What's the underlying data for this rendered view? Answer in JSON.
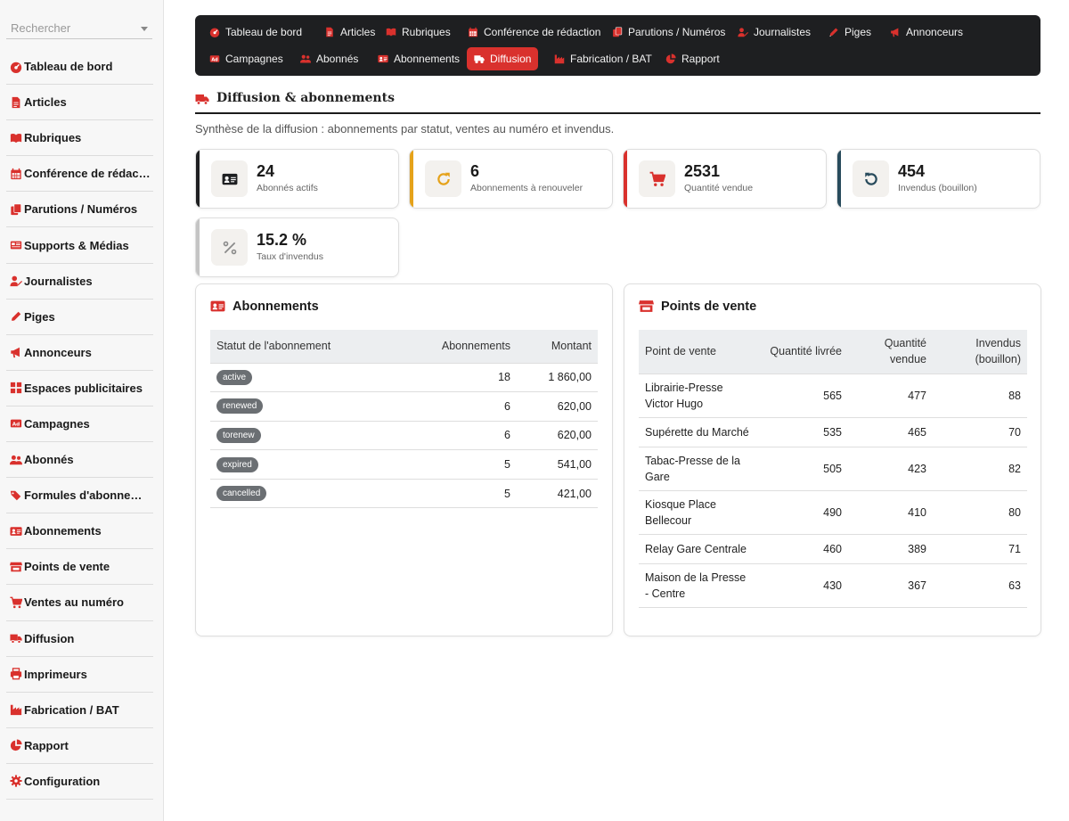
{
  "sidebar": {
    "search_placeholder": "Rechercher",
    "items": [
      {
        "label": "Tableau de bord",
        "icon": "gauge-icon"
      },
      {
        "label": "Articles",
        "icon": "file-icon"
      },
      {
        "label": "Rubriques",
        "icon": "book-open-icon"
      },
      {
        "label": "Conférence de rédac…",
        "icon": "calendar-icon"
      },
      {
        "label": "Parutions / Numéros",
        "icon": "copy-icon"
      },
      {
        "label": "Supports & Médias",
        "icon": "newspaper-icon"
      },
      {
        "label": "Journalistes",
        "icon": "user-pen-icon"
      },
      {
        "label": "Piges",
        "icon": "pen-icon"
      },
      {
        "label": "Annonceurs",
        "icon": "bullhorn-icon"
      },
      {
        "label": "Espaces publicitaires",
        "icon": "grid-icon"
      },
      {
        "label": "Campagnes",
        "icon": "ad-icon"
      },
      {
        "label": "Abonnés",
        "icon": "users-icon"
      },
      {
        "label": "Formules d'abonne…",
        "icon": "tags-icon"
      },
      {
        "label": "Abonnements",
        "icon": "id-card-icon"
      },
      {
        "label": "Points de vente",
        "icon": "store-icon"
      },
      {
        "label": "Ventes au numéro",
        "icon": "cart-icon"
      },
      {
        "label": "Diffusion",
        "icon": "truck-icon"
      },
      {
        "label": "Imprimeurs",
        "icon": "printer-icon"
      },
      {
        "label": "Fabrication / BAT",
        "icon": "industry-icon"
      },
      {
        "label": "Rapport",
        "icon": "pie-chart-icon"
      },
      {
        "label": "Configuration",
        "icon": "gear-icon"
      }
    ]
  },
  "topnav": {
    "row1": [
      {
        "label": "Tableau de bord",
        "icon": "gauge-icon"
      },
      {
        "label": "Articles",
        "icon": "file-icon"
      },
      {
        "label": "Rubriques",
        "icon": "book-open-icon"
      },
      {
        "label": "Conférence de rédaction",
        "icon": "calendar-icon"
      },
      {
        "label": "Parutions / Numéros",
        "icon": "copy-icon"
      },
      {
        "label": "Journalistes",
        "icon": "user-pen-icon"
      },
      {
        "label": "Piges",
        "icon": "pen-icon"
      },
      {
        "label": "Annonceurs",
        "icon": "bullhorn-icon"
      }
    ],
    "row2": [
      {
        "label": "Campagnes",
        "icon": "ad-icon"
      },
      {
        "label": "Abonnés",
        "icon": "users-icon"
      },
      {
        "label": "Abonnements",
        "icon": "id-card-icon"
      },
      {
        "label": "Diffusion",
        "icon": "truck-icon",
        "active": true
      },
      {
        "label": "Fabrication / BAT",
        "icon": "industry-icon"
      },
      {
        "label": "Rapport",
        "icon": "pie-chart-icon"
      }
    ]
  },
  "page": {
    "title": "Diffusion & abonnements",
    "subtitle": "Synthèse de la diffusion : abonnements par statut, ventes au numéro et invendus."
  },
  "stats": [
    {
      "value": "24",
      "label": "Abonnés actifs",
      "icon": "id-card-icon",
      "accent": "#1e1f21"
    },
    {
      "value": "6",
      "label": "Abonnements à renouveler",
      "icon": "redo-icon",
      "accent": "#e5a21a"
    },
    {
      "value": "2531",
      "label": "Quantité vendue",
      "icon": "cart-icon",
      "accent": "#d9312d"
    },
    {
      "value": "454",
      "label": "Invendus (bouillon)",
      "icon": "undo-icon",
      "accent": "#284b5c"
    },
    {
      "value": "15.2 %",
      "label": "Taux d'invendus",
      "icon": "percent-icon",
      "accent": "#c4c4c4"
    }
  ],
  "abonnements": {
    "title": "Abonnements",
    "columns": [
      "Statut de l'abonnement",
      "Abonnements",
      "Montant"
    ],
    "rows": [
      {
        "statut": "active",
        "count": "18",
        "montant": "1 860,00"
      },
      {
        "statut": "renewed",
        "count": "6",
        "montant": "620,00"
      },
      {
        "statut": "torenew",
        "count": "6",
        "montant": "620,00"
      },
      {
        "statut": "expired",
        "count": "5",
        "montant": "541,00"
      },
      {
        "statut": "cancelled",
        "count": "5",
        "montant": "421,00"
      }
    ]
  },
  "points_de_vente": {
    "title": "Points de vente",
    "columns": [
      "Point de vente",
      "Quantité livrée",
      "Quantité vendue",
      "Invendus (bouillon)"
    ],
    "rows": [
      {
        "nom": "Librairie-Presse Victor Hugo",
        "livree": "565",
        "vendue": "477",
        "invendus": "88"
      },
      {
        "nom": "Supérette du Marché",
        "livree": "535",
        "vendue": "465",
        "invendus": "70"
      },
      {
        "nom": "Tabac-Presse de la Gare",
        "livree": "505",
        "vendue": "423",
        "invendus": "82"
      },
      {
        "nom": "Kiosque Place Bellecour",
        "livree": "490",
        "vendue": "410",
        "invendus": "80"
      },
      {
        "nom": "Relay Gare Centrale",
        "livree": "460",
        "vendue": "389",
        "invendus": "71"
      },
      {
        "nom": "Maison de la Presse - Centre",
        "livree": "430",
        "vendue": "367",
        "invendus": "63"
      }
    ]
  },
  "colors": {
    "accent": "#d9312d",
    "nav_bg": "#1e1f21"
  }
}
